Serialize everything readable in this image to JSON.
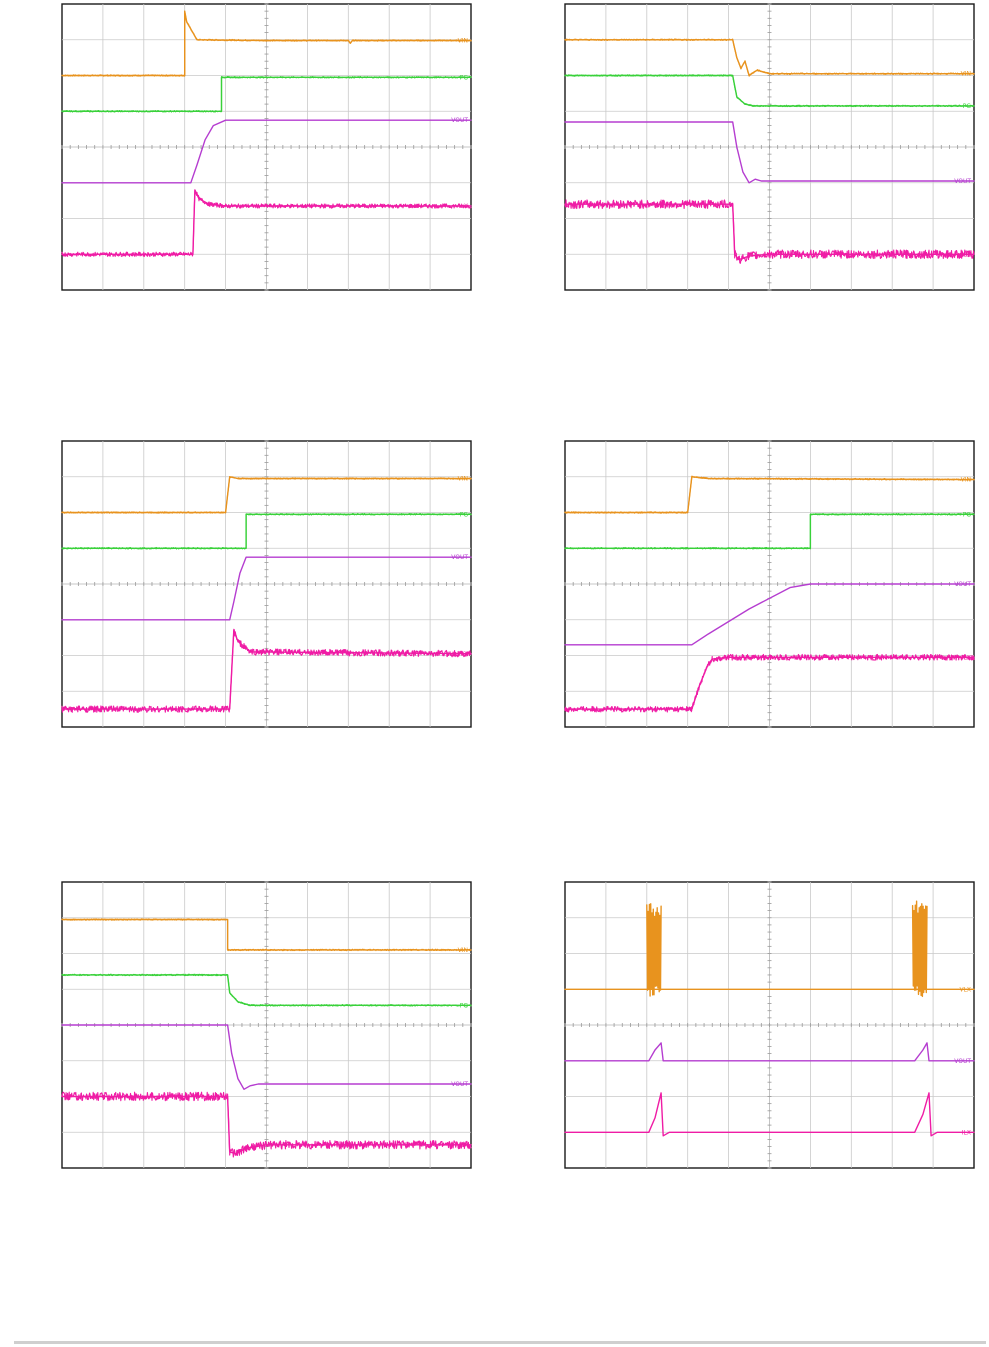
{
  "colors": {
    "VIN": "#e8931e",
    "PG": "#39d13a",
    "VOUT": "#b53dd0",
    "ILX": "#ef1ca5"
  },
  "chart_data": [
    {
      "type": "line",
      "id": "top-left",
      "grid": true,
      "xlim": [
        0,
        10
      ],
      "ylim": [
        0,
        8
      ],
      "series": [
        {
          "name": "VIN",
          "color": "VIN",
          "noise": 0.02,
          "points": [
            [
              0,
              6.0
            ],
            [
              3.0,
              6.0
            ],
            [
              3.0,
              7.8
            ],
            [
              3.05,
              7.5
            ],
            [
              3.3,
              7.0
            ],
            [
              5,
              6.98
            ],
            [
              7,
              6.98
            ],
            [
              7.05,
              6.9
            ],
            [
              7.1,
              6.98
            ],
            [
              10,
              6.98
            ]
          ]
        },
        {
          "name": "PG",
          "color": "PG",
          "noise": 0.02,
          "points": [
            [
              0,
              5.0
            ],
            [
              3.9,
              5.0
            ],
            [
              3.9,
              5.95
            ],
            [
              10,
              5.95
            ]
          ]
        },
        {
          "name": "VOUT",
          "color": "VOUT",
          "noise": 0,
          "points": [
            [
              0,
              3.0
            ],
            [
              3.15,
              3.0
            ],
            [
              3.3,
              3.5
            ],
            [
              3.5,
              4.2
            ],
            [
              3.7,
              4.6
            ],
            [
              4.0,
              4.75
            ],
            [
              10,
              4.75
            ]
          ]
        },
        {
          "name": "ILX",
          "color": "ILX",
          "noise": 0.06,
          "points": [
            [
              0,
              1.0
            ],
            [
              3.2,
              1.0
            ],
            [
              3.25,
              2.8
            ],
            [
              3.35,
              2.55
            ],
            [
              3.6,
              2.4
            ],
            [
              4.0,
              2.35
            ],
            [
              10,
              2.35
            ]
          ]
        }
      ]
    },
    {
      "type": "line",
      "id": "top-right",
      "grid": true,
      "xlim": [
        0,
        10
      ],
      "ylim": [
        0,
        8
      ],
      "series": [
        {
          "name": "VIN",
          "color": "VIN",
          "noise": 0.02,
          "points": [
            [
              0,
              7.0
            ],
            [
              4.1,
              7.0
            ],
            [
              4.2,
              6.5
            ],
            [
              4.3,
              6.2
            ],
            [
              4.4,
              6.4
            ],
            [
              4.5,
              6.0
            ],
            [
              4.7,
              6.15
            ],
            [
              5.0,
              6.05
            ],
            [
              10,
              6.05
            ]
          ]
        },
        {
          "name": "PG",
          "color": "PG",
          "noise": 0.02,
          "points": [
            [
              0,
              6.0
            ],
            [
              4.1,
              6.0
            ],
            [
              4.2,
              5.4
            ],
            [
              4.4,
              5.2
            ],
            [
              4.6,
              5.15
            ],
            [
              10,
              5.15
            ]
          ]
        },
        {
          "name": "VOUT",
          "color": "VOUT",
          "noise": 0,
          "points": [
            [
              0,
              4.7
            ],
            [
              4.1,
              4.7
            ],
            [
              4.2,
              4.0
            ],
            [
              4.35,
              3.3
            ],
            [
              4.5,
              3.0
            ],
            [
              4.65,
              3.1
            ],
            [
              4.8,
              3.05
            ],
            [
              10,
              3.05
            ]
          ]
        },
        {
          "name": "ILX",
          "color": "ILX",
          "noise": 0.12,
          "points": [
            [
              0,
              2.4
            ],
            [
              4.1,
              2.4
            ],
            [
              4.15,
              1.0
            ],
            [
              4.25,
              0.85
            ],
            [
              4.5,
              0.95
            ],
            [
              5,
              1.0
            ],
            [
              10,
              1.0
            ]
          ]
        }
      ]
    },
    {
      "type": "line",
      "id": "middle-left",
      "grid": true,
      "xlim": [
        0,
        10
      ],
      "ylim": [
        0,
        8
      ],
      "series": [
        {
          "name": "VIN",
          "color": "VIN",
          "noise": 0.02,
          "points": [
            [
              0,
              6.0
            ],
            [
              4.0,
              6.0
            ],
            [
              4.1,
              7.0
            ],
            [
              4.3,
              6.95
            ],
            [
              10,
              6.95
            ]
          ]
        },
        {
          "name": "PG",
          "color": "PG",
          "noise": 0.02,
          "points": [
            [
              0,
              5.0
            ],
            [
              4.5,
              5.0
            ],
            [
              4.5,
              5.95
            ],
            [
              10,
              5.95
            ]
          ]
        },
        {
          "name": "VOUT",
          "color": "VOUT",
          "noise": 0,
          "points": [
            [
              0,
              3.0
            ],
            [
              4.1,
              3.0
            ],
            [
              4.2,
              3.5
            ],
            [
              4.35,
              4.3
            ],
            [
              4.5,
              4.75
            ],
            [
              10,
              4.75
            ]
          ]
        },
        {
          "name": "ILX",
          "color": "ILX",
          "noise": 0.09,
          "points": [
            [
              0,
              0.5
            ],
            [
              4.1,
              0.5
            ],
            [
              4.2,
              2.7
            ],
            [
              4.3,
              2.4
            ],
            [
              4.6,
              2.1
            ],
            [
              10,
              2.05
            ]
          ]
        }
      ]
    },
    {
      "type": "line",
      "id": "middle-right",
      "grid": true,
      "xlim": [
        0,
        10
      ],
      "ylim": [
        0,
        8
      ],
      "series": [
        {
          "name": "VIN",
          "color": "VIN",
          "noise": 0.02,
          "points": [
            [
              0,
              6.0
            ],
            [
              3.0,
              6.0
            ],
            [
              3.1,
              7.0
            ],
            [
              3.5,
              6.95
            ],
            [
              10,
              6.92
            ]
          ]
        },
        {
          "name": "PG",
          "color": "PG",
          "noise": 0.02,
          "points": [
            [
              0,
              5.0
            ],
            [
              6.0,
              5.0
            ],
            [
              6.0,
              5.95
            ],
            [
              10,
              5.95
            ]
          ]
        },
        {
          "name": "VOUT",
          "color": "VOUT",
          "noise": 0,
          "points": [
            [
              0,
              2.3
            ],
            [
              3.1,
              2.3
            ],
            [
              3.5,
              2.6
            ],
            [
              4.5,
              3.3
            ],
            [
              5.5,
              3.9
            ],
            [
              6.0,
              4.0
            ],
            [
              10,
              4.0
            ]
          ]
        },
        {
          "name": "ILX",
          "color": "ILX",
          "noise": 0.08,
          "points": [
            [
              0,
              0.5
            ],
            [
              3.1,
              0.5
            ],
            [
              3.3,
              1.2
            ],
            [
              3.5,
              1.75
            ],
            [
              3.6,
              1.9
            ],
            [
              4,
              1.95
            ],
            [
              10,
              1.95
            ]
          ]
        }
      ]
    },
    {
      "type": "line",
      "id": "bottom-left",
      "grid": true,
      "xlim": [
        0,
        10
      ],
      "ylim": [
        0,
        8
      ],
      "series": [
        {
          "name": "VIN",
          "color": "VIN",
          "noise": 0.02,
          "points": [
            [
              0,
              6.95
            ],
            [
              4.05,
              6.95
            ],
            [
              4.05,
              6.1
            ],
            [
              10,
              6.1
            ]
          ]
        },
        {
          "name": "PG",
          "color": "PG",
          "noise": 0.02,
          "points": [
            [
              0,
              5.4
            ],
            [
              4.05,
              5.4
            ],
            [
              4.1,
              4.9
            ],
            [
              4.3,
              4.65
            ],
            [
              4.6,
              4.55
            ],
            [
              10,
              4.55
            ]
          ]
        },
        {
          "name": "VOUT",
          "color": "VOUT",
          "noise": 0,
          "points": [
            [
              0,
              4.0
            ],
            [
              4.05,
              4.0
            ],
            [
              4.15,
              3.2
            ],
            [
              4.3,
              2.5
            ],
            [
              4.45,
              2.2
            ],
            [
              4.6,
              2.3
            ],
            [
              4.8,
              2.35
            ],
            [
              10,
              2.35
            ]
          ]
        },
        {
          "name": "ILX",
          "color": "ILX",
          "noise": 0.12,
          "points": [
            [
              0,
              2.0
            ],
            [
              4.05,
              2.0
            ],
            [
              4.1,
              0.45
            ],
            [
              4.25,
              0.4
            ],
            [
              4.5,
              0.55
            ],
            [
              5,
              0.65
            ],
            [
              10,
              0.65
            ]
          ]
        }
      ]
    },
    {
      "type": "line",
      "id": "bottom-right",
      "grid": true,
      "xlim": [
        0,
        10
      ],
      "ylim": [
        0,
        8
      ],
      "series": [
        {
          "name": "VLX",
          "color": "VIN",
          "noise": 0,
          "burst": [
            [
              2.0,
              2.35
            ],
            [
              8.5,
              8.85
            ]
          ],
          "burst_range": [
            4.8,
            7.5
          ],
          "points": [
            [
              0,
              5.0
            ],
            [
              10,
              5.0
            ]
          ]
        },
        {
          "name": "VOUT",
          "color": "VOUT",
          "noise": 0,
          "points": [
            [
              0,
              3.0
            ],
            [
              2.05,
              3.0
            ],
            [
              2.2,
              3.3
            ],
            [
              2.35,
              3.5
            ],
            [
              2.4,
              3.0
            ],
            [
              8.55,
              3.0
            ],
            [
              8.75,
              3.3
            ],
            [
              8.85,
              3.5
            ],
            [
              8.9,
              3.0
            ],
            [
              10,
              3.0
            ]
          ]
        },
        {
          "name": "ILX",
          "color": "ILX",
          "noise": 0,
          "points": [
            [
              0,
              1.0
            ],
            [
              2.05,
              1.0
            ],
            [
              2.2,
              1.4
            ],
            [
              2.35,
              2.1
            ],
            [
              2.4,
              0.9
            ],
            [
              2.55,
              1.0
            ],
            [
              8.55,
              1.0
            ],
            [
              8.75,
              1.5
            ],
            [
              8.9,
              2.1
            ],
            [
              8.95,
              0.9
            ],
            [
              9.1,
              1.0
            ],
            [
              10,
              1.0
            ]
          ]
        }
      ]
    }
  ]
}
